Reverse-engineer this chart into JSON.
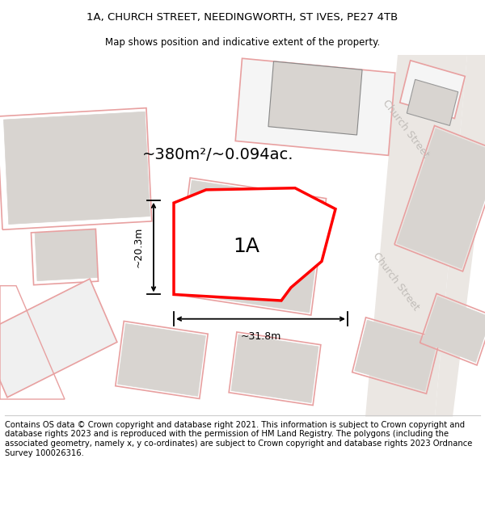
{
  "title_line1": "1A, CHURCH STREET, NEEDINGWORTH, ST IVES, PE27 4TB",
  "title_line2": "Map shows position and indicative extent of the property.",
  "area_label": "~380m²/~0.094ac.",
  "plot_label": "1A",
  "dim_width": "~31.8m",
  "dim_height": "~20.3m",
  "street_label": "Church Street",
  "footer": "Contains OS data © Crown copyright and database right 2021. This information is subject to Crown copyright and database rights 2023 and is reproduced with the permission of HM Land Registry. The polygons (including the associated geometry, namely x, y co-ordinates) are subject to Crown copyright and database rights 2023 Ordnance Survey 100026316.",
  "bg_color": "#ffffff",
  "map_bg": "#ffffff",
  "plot_fill": "#ffffff",
  "plot_edge": "#ff0000",
  "building_fill": "#d8d4d0",
  "building_edge": "#f0a0a0",
  "building_fill_light": "#ececec",
  "building_edge_light": "#e8b8b8",
  "street_color": "#e8e4e0",
  "street_label_color": "#c0bcb8",
  "title_fontsize": 9.5,
  "footer_fontsize": 7.5
}
